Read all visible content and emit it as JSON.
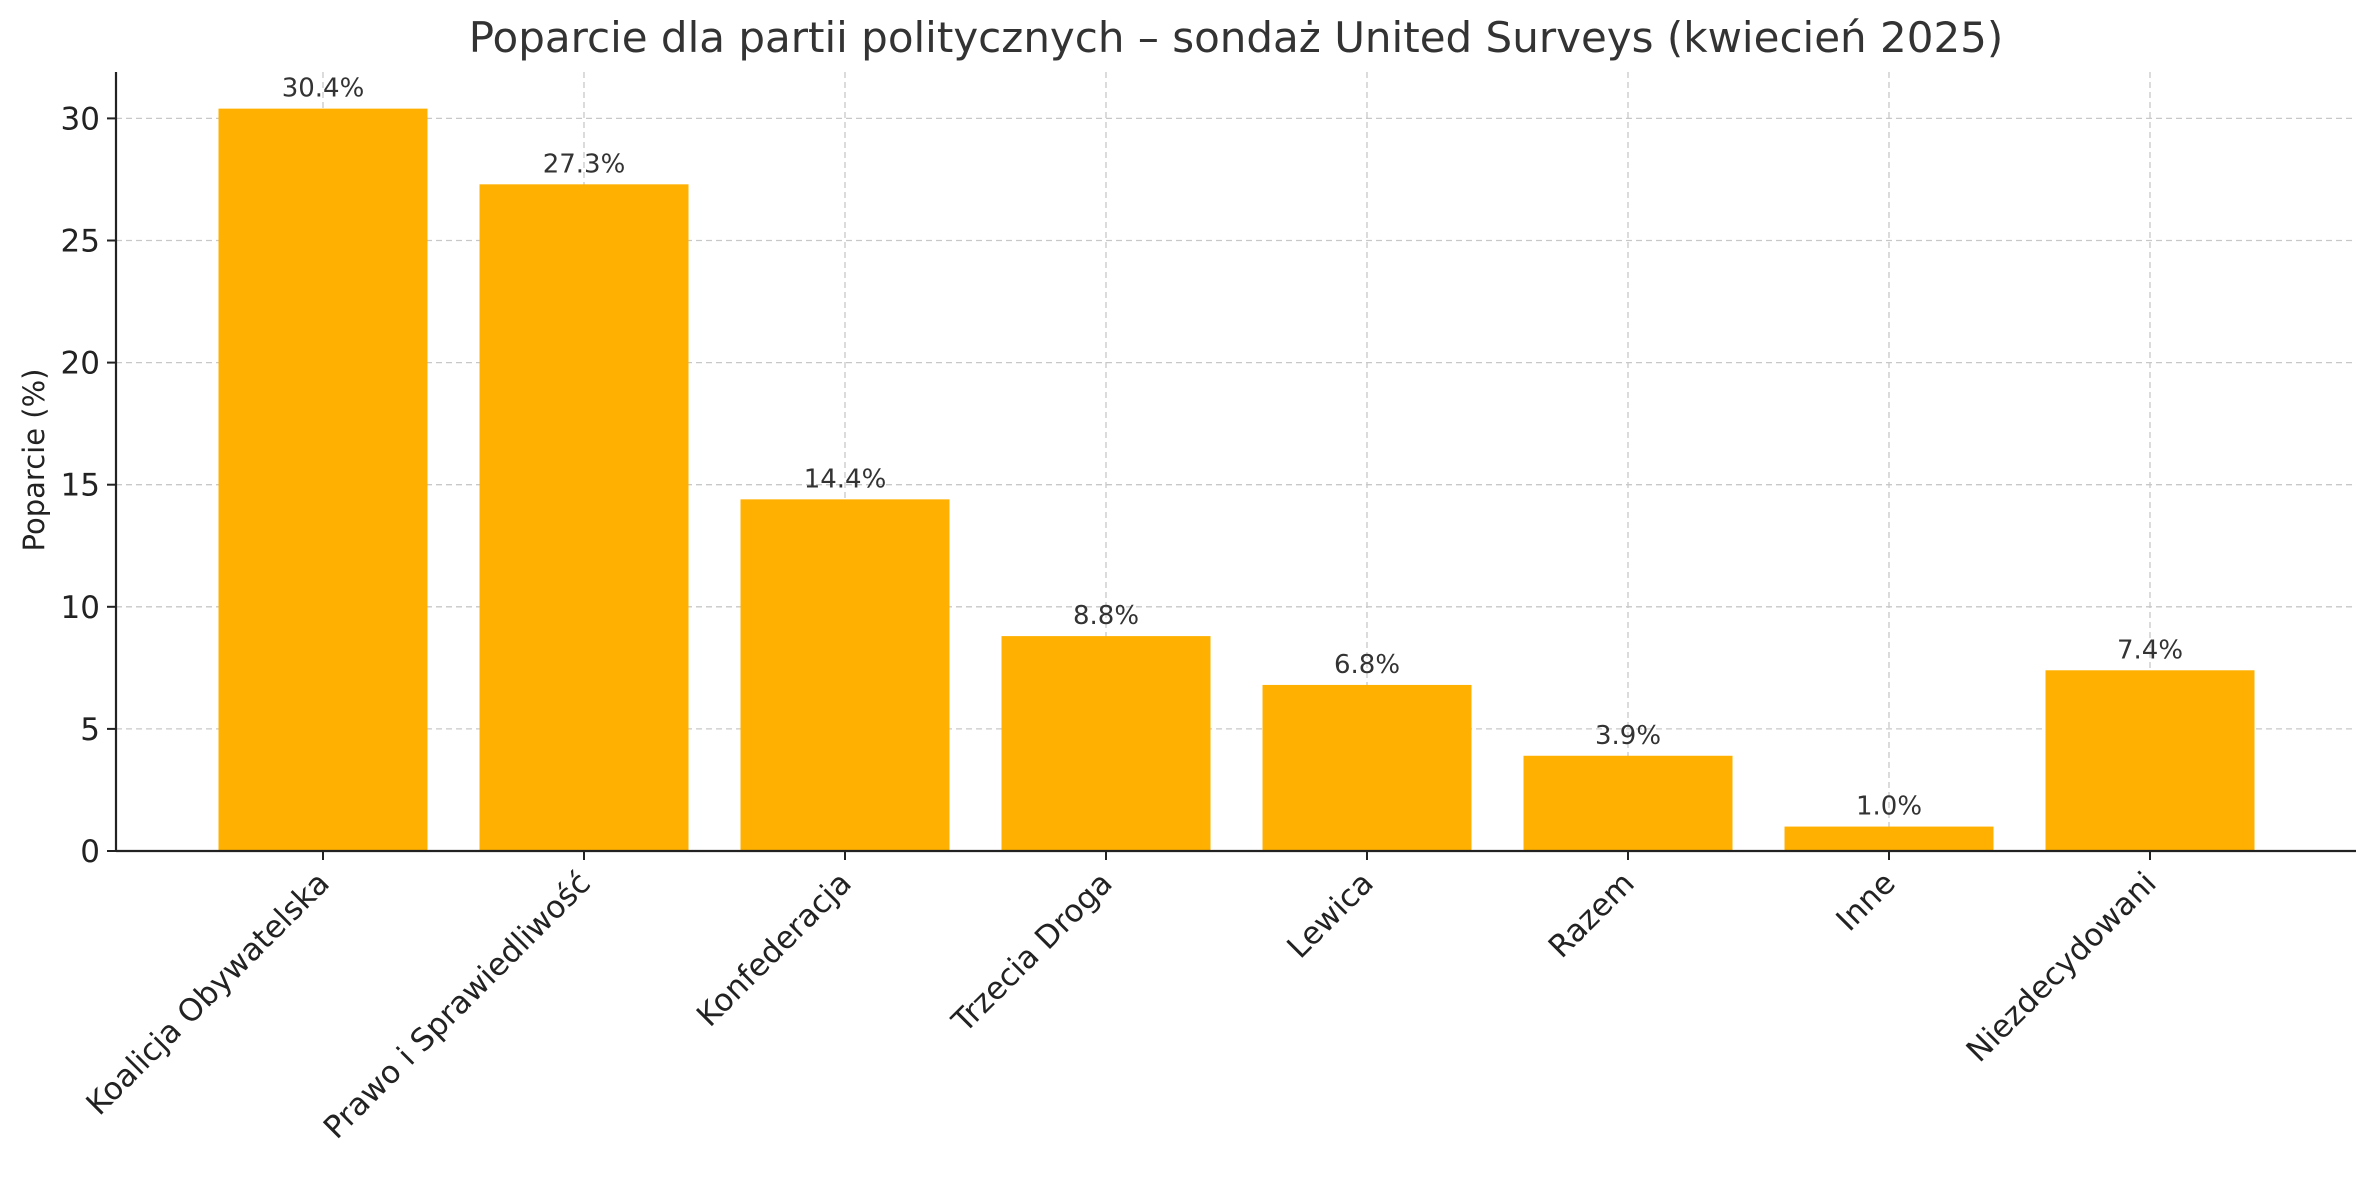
{
  "chart_data": {
    "type": "bar",
    "title": "Poparcie dla partii politycznych – sondaż United Surveys (kwiecień 2025)",
    "xlabel": "",
    "ylabel": "Poparcie (%)",
    "categories": [
      "Koalicja Obywatelska",
      "Prawo i Sprawiedliwość",
      "Konfederacja",
      "Trzecia Droga",
      "Lewica",
      "Razem",
      "Inne",
      "Niezdecydowani"
    ],
    "values": [
      30.4,
      27.3,
      14.4,
      8.8,
      6.8,
      3.9,
      1.0,
      7.4
    ],
    "value_labels": [
      "30.4%",
      "27.3%",
      "14.4%",
      "8.8%",
      "6.8%",
      "3.9%",
      "1.0%",
      "7.4%"
    ],
    "yticks": [
      0,
      5,
      10,
      15,
      20,
      25,
      30
    ],
    "ylim": [
      0,
      31.9
    ],
    "grid": true,
    "bar_color": "#ffb000"
  }
}
